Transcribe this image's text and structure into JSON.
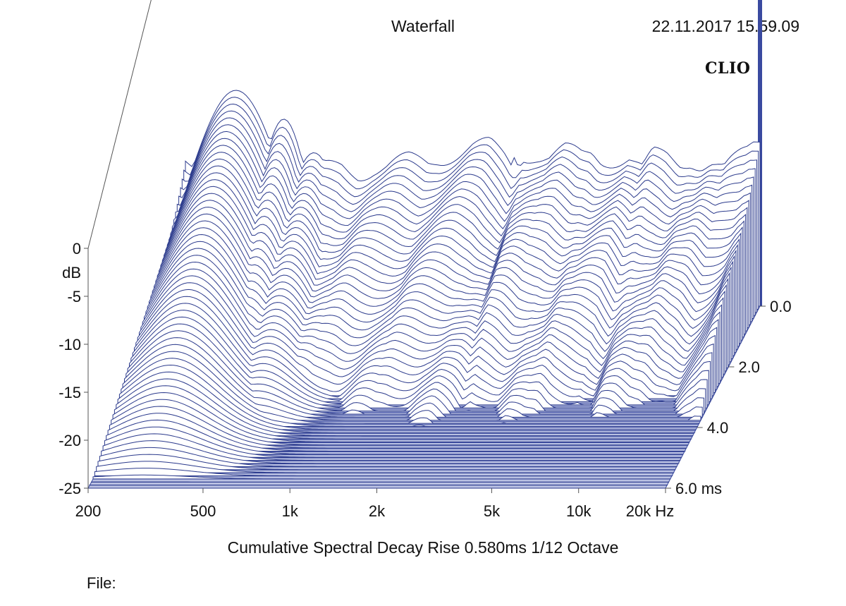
{
  "header": {
    "title": "Waterfall",
    "timestamp": "22.11.2017 15.59.09",
    "logo": "CLIO"
  },
  "footer": {
    "subtitle": "Cumulative Spectral Decay   Rise 0.580ms   1/12 Octave",
    "file_label": "File:"
  },
  "colors": {
    "trace": "#2b3a8c",
    "floor": "#3a4aa0",
    "frame": "#555555"
  },
  "chart_data": {
    "type": "area",
    "subtype": "waterfall-3d",
    "title": "Waterfall",
    "ylabel": "dB",
    "y_ticks": [
      "0",
      "-5",
      "-10",
      "-15",
      "-20",
      "-25"
    ],
    "ylim": [
      -25,
      0
    ],
    "x_ticks": [
      "200",
      "500",
      "1k",
      "2k",
      "5k",
      "10k",
      "20k Hz"
    ],
    "x_tick_values": [
      200,
      500,
      1000,
      2000,
      5000,
      10000,
      20000
    ],
    "xlim": [
      200,
      20000
    ],
    "x_scale": "log",
    "t_ticks": [
      "0.0",
      "2.0",
      "4.0",
      "6.0  ms"
    ],
    "t_tick_values": [
      0,
      2,
      4,
      6
    ],
    "tlim": [
      0,
      6
    ],
    "slices": 60,
    "initial_response_db": [
      [
        200,
        -9.5
      ],
      [
        250,
        -10
      ],
      [
        300,
        -10.5
      ],
      [
        400,
        -10.5
      ],
      [
        450,
        -11
      ],
      [
        500,
        -10.5
      ],
      [
        600,
        -11
      ],
      [
        700,
        -10.5
      ],
      [
        800,
        -11
      ],
      [
        900,
        -10.5
      ],
      [
        1000,
        -10.5
      ],
      [
        1200,
        -10
      ],
      [
        1400,
        -10
      ],
      [
        1500,
        -9.5
      ],
      [
        1700,
        -9
      ],
      [
        2000,
        -8.5
      ],
      [
        2300,
        -8.5
      ],
      [
        2600,
        -9.5
      ],
      [
        2800,
        -10.5
      ],
      [
        3000,
        -9
      ],
      [
        3300,
        -9
      ],
      [
        3700,
        -9.5
      ],
      [
        4200,
        -9
      ],
      [
        4800,
        -9.5
      ],
      [
        5200,
        -9
      ],
      [
        5600,
        -9.5
      ],
      [
        6200,
        -9.5
      ],
      [
        7000,
        -9.5
      ],
      [
        7800,
        -11
      ],
      [
        8500,
        -9.5
      ],
      [
        9500,
        -9.5
      ],
      [
        10500,
        -10
      ],
      [
        11500,
        -9.5
      ],
      [
        12500,
        -10
      ],
      [
        13500,
        -10
      ],
      [
        15000,
        -11
      ],
      [
        16500,
        -10
      ],
      [
        18000,
        -9
      ],
      [
        19000,
        -8
      ],
      [
        20000,
        -7.5
      ]
    ],
    "decay_modes": [
      {
        "f": 300,
        "db": -2.5,
        "tau": 5.8,
        "bw": 0.16
      },
      {
        "f": 440,
        "db": -5.5,
        "tau": 3.8,
        "bw": 0.09
      },
      {
        "f": 560,
        "db": -9,
        "tau": 4.2,
        "bw": 0.1
      },
      {
        "f": 1000,
        "db": -11,
        "tau": 1.9,
        "bw": 0.06
      },
      {
        "f": 1300,
        "db": -14.5,
        "tau": 0.9,
        "bw": 0.05
      },
      {
        "f": 1900,
        "db": -13,
        "tau": 1.4,
        "bw": 0.05
      },
      {
        "f": 2400,
        "db": -11.5,
        "tau": 1.6,
        "bw": 0.04
      },
      {
        "f": 2800,
        "db": -9.5,
        "tau": 0.9,
        "bw": 0.03
      },
      {
        "f": 3300,
        "db": -15,
        "tau": 0.4,
        "bw": 0.02
      },
      {
        "f": 7800,
        "db": -16,
        "tau": 0.3,
        "bw": 0.02
      },
      {
        "f": 17500,
        "db": -15,
        "tau": 0.3,
        "bw": 0.02
      }
    ]
  }
}
